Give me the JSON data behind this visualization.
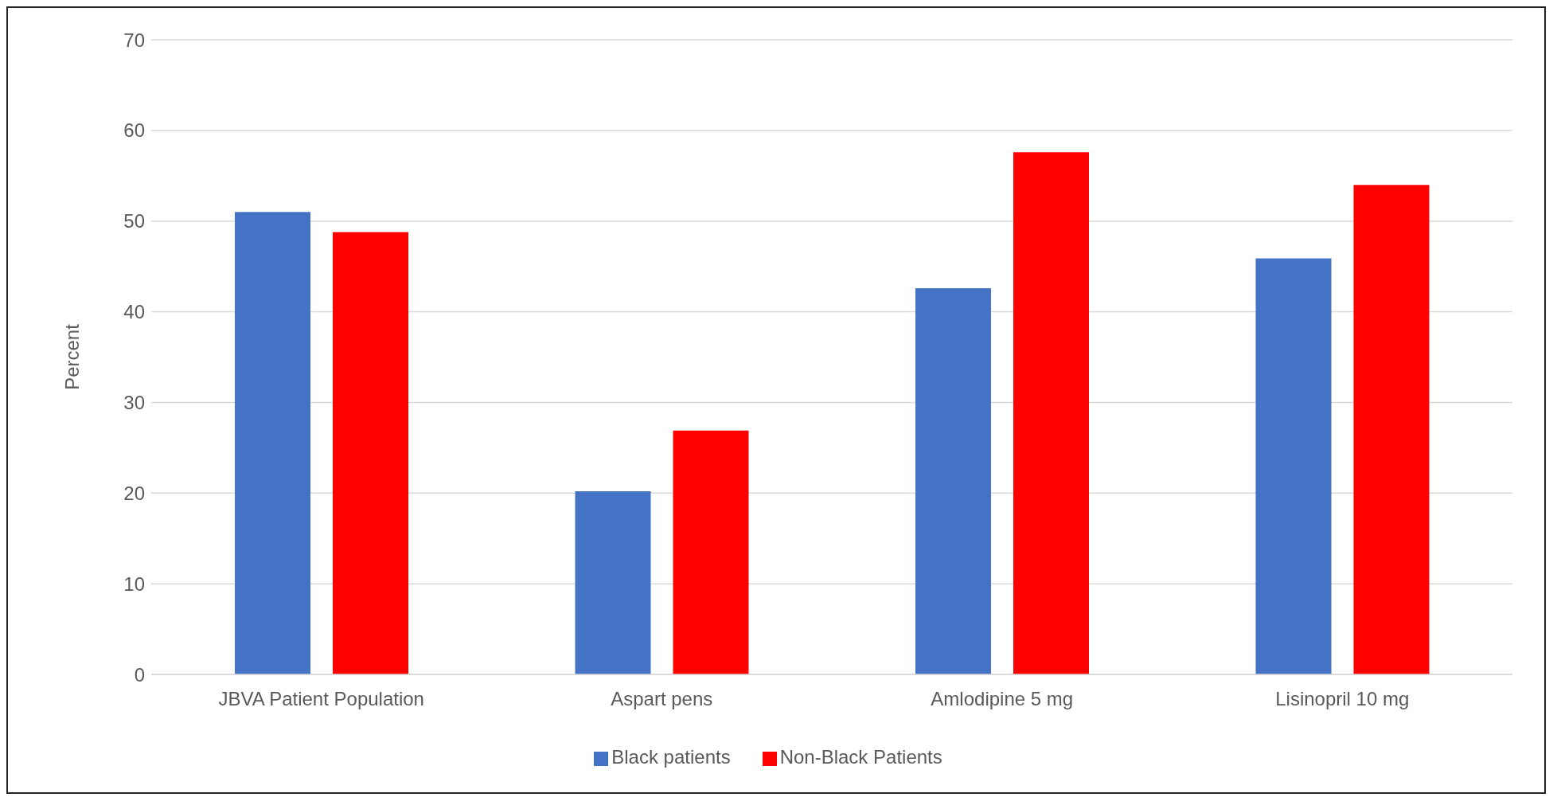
{
  "chart_data": {
    "type": "bar",
    "ylabel": "Percent",
    "categories": [
      "JBVA Patient Population",
      "Aspart pens",
      "Amlodipine 5 mg",
      "Lisinopril 10 mg"
    ],
    "series": [
      {
        "name": "Black patients",
        "color": "#4472c4",
        "values": [
          51,
          20.2,
          42.6,
          45.9
        ]
      },
      {
        "name": "Non-Black Patients",
        "color": "#ff0000",
        "values": [
          48.8,
          26.9,
          57.6,
          54.0
        ]
      }
    ],
    "ylim": [
      0,
      70
    ],
    "yticks": [
      0,
      10,
      20,
      30,
      40,
      50,
      60,
      70
    ],
    "grid": "y",
    "legend": "bottom"
  }
}
